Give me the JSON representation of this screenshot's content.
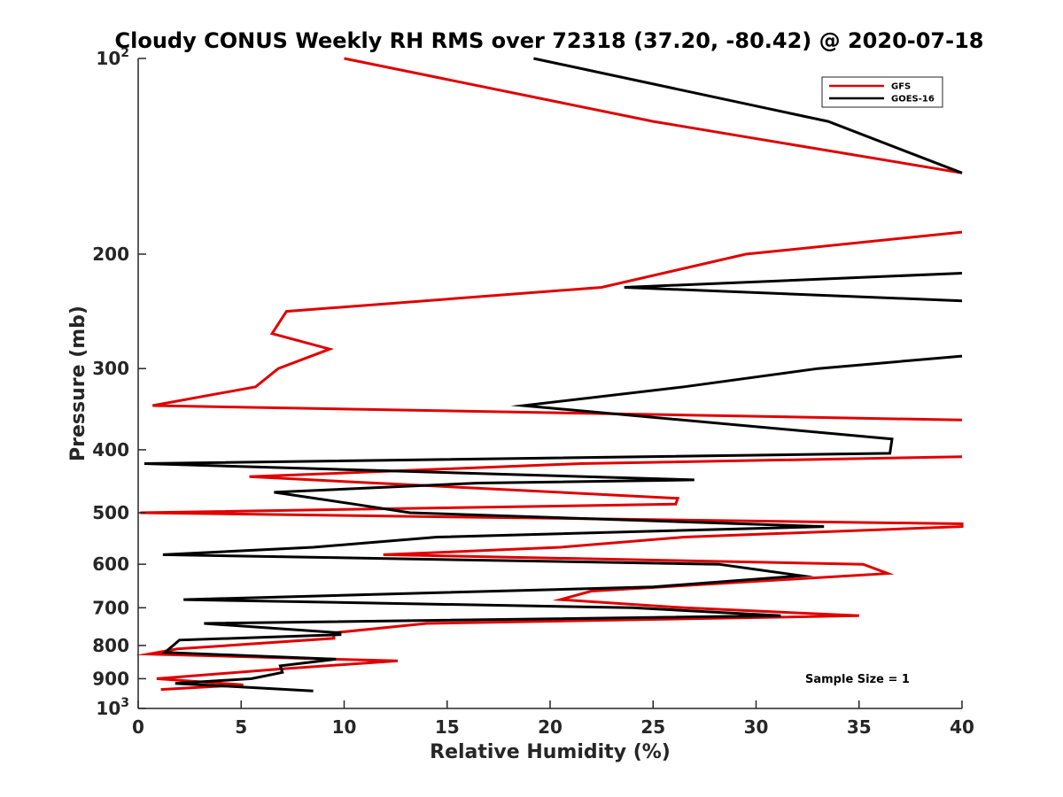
{
  "chart_data": {
    "type": "line",
    "title": "Cloudy CONUS Weekly RH RMS over 72318 (37.20, -80.42) @ 2020-07-18",
    "xlabel": "Relative Humidity (%)",
    "ylabel": "Pressure (mb)",
    "xlim": [
      0,
      40
    ],
    "ylim": [
      100,
      1000
    ],
    "yscale": "log",
    "yreversed": true,
    "xticks": [
      "0",
      "5",
      "10",
      "15",
      "20",
      "25",
      "30",
      "35",
      "40"
    ],
    "yticks": [
      {
        "value": 100,
        "label": "10",
        "sup": "2"
      },
      {
        "value": 200,
        "label": "200",
        "sup": ""
      },
      {
        "value": 300,
        "label": "300",
        "sup": ""
      },
      {
        "value": 400,
        "label": "400",
        "sup": ""
      },
      {
        "value": 500,
        "label": "500",
        "sup": ""
      },
      {
        "value": 600,
        "label": "600",
        "sup": ""
      },
      {
        "value": 700,
        "label": "700",
        "sup": ""
      },
      {
        "value": 800,
        "label": "800",
        "sup": ""
      },
      {
        "value": 900,
        "label": "900",
        "sup": ""
      },
      {
        "value": 1000,
        "label": "10",
        "sup": "3"
      }
    ],
    "legend_position": "top-right",
    "annotation": "Sample Size = 1",
    "series": [
      {
        "name": "GFS",
        "color": "#e00000",
        "points": [
          [
            10.0,
            100
          ],
          [
            25.0,
            125
          ],
          [
            40.0,
            150
          ],
          [
            null,
            null
          ],
          [
            40.0,
            185
          ],
          [
            29.5,
            200
          ],
          [
            22.5,
            225
          ],
          [
            7.2,
            245
          ],
          [
            6.5,
            265
          ],
          [
            9.3,
            280
          ],
          [
            6.8,
            300
          ],
          [
            5.7,
            320
          ],
          [
            0.7,
            342
          ],
          [
            40.0,
            360
          ],
          [
            null,
            null
          ],
          [
            40.0,
            410
          ],
          [
            21.5,
            420
          ],
          [
            5.4,
            440
          ],
          [
            26.2,
            475
          ],
          [
            26.1,
            485
          ],
          [
            0.1,
            500
          ],
          [
            40.0,
            520
          ],
          [
            40.0,
            525
          ],
          [
            26.5,
            545
          ],
          [
            20.5,
            565
          ],
          [
            11.9,
            580
          ],
          [
            35.2,
            600
          ],
          [
            36.4,
            620
          ],
          [
            22.0,
            660
          ],
          [
            20.5,
            680
          ],
          [
            26.5,
            700
          ],
          [
            35.0,
            720
          ],
          [
            14.0,
            740
          ],
          [
            9.5,
            765
          ],
          [
            9.5,
            780
          ],
          [
            1.9,
            810
          ],
          [
            0.5,
            825
          ],
          [
            12.6,
            845
          ],
          [
            6.8,
            870
          ],
          [
            0.9,
            900
          ],
          [
            5.1,
            920
          ],
          [
            1.1,
            935
          ]
        ]
      },
      {
        "name": "GOES-16",
        "color": "#000000",
        "points": [
          [
            19.2,
            100
          ],
          [
            33.5,
            125
          ],
          [
            40.0,
            150
          ],
          [
            null,
            null
          ],
          [
            40.0,
            214
          ],
          [
            23.6,
            225
          ],
          [
            40.0,
            236
          ],
          [
            null,
            null
          ],
          [
            40.0,
            287
          ],
          [
            33.0,
            300
          ],
          [
            26.5,
            320
          ],
          [
            18.7,
            342
          ],
          [
            36.6,
            385
          ],
          [
            36.5,
            405
          ],
          [
            0.3,
            420
          ],
          [
            27.0,
            445
          ],
          [
            16.5,
            450
          ],
          [
            6.6,
            465
          ],
          [
            10.5,
            485
          ],
          [
            13.2,
            500
          ],
          [
            33.3,
            525
          ],
          [
            14.5,
            545
          ],
          [
            8.5,
            565
          ],
          [
            1.2,
            580
          ],
          [
            28.2,
            600
          ],
          [
            32.2,
            625
          ],
          [
            25.0,
            650
          ],
          [
            2.2,
            680
          ],
          [
            24.0,
            700
          ],
          [
            31.2,
            720
          ],
          [
            3.2,
            740
          ],
          [
            9.8,
            765
          ],
          [
            9.8,
            770
          ],
          [
            2.0,
            785
          ],
          [
            1.7,
            800
          ],
          [
            1.3,
            820
          ],
          [
            9.6,
            840
          ],
          [
            6.9,
            860
          ],
          [
            7.0,
            880
          ],
          [
            5.5,
            900
          ],
          [
            1.8,
            915
          ],
          [
            8.5,
            940
          ]
        ]
      }
    ]
  }
}
